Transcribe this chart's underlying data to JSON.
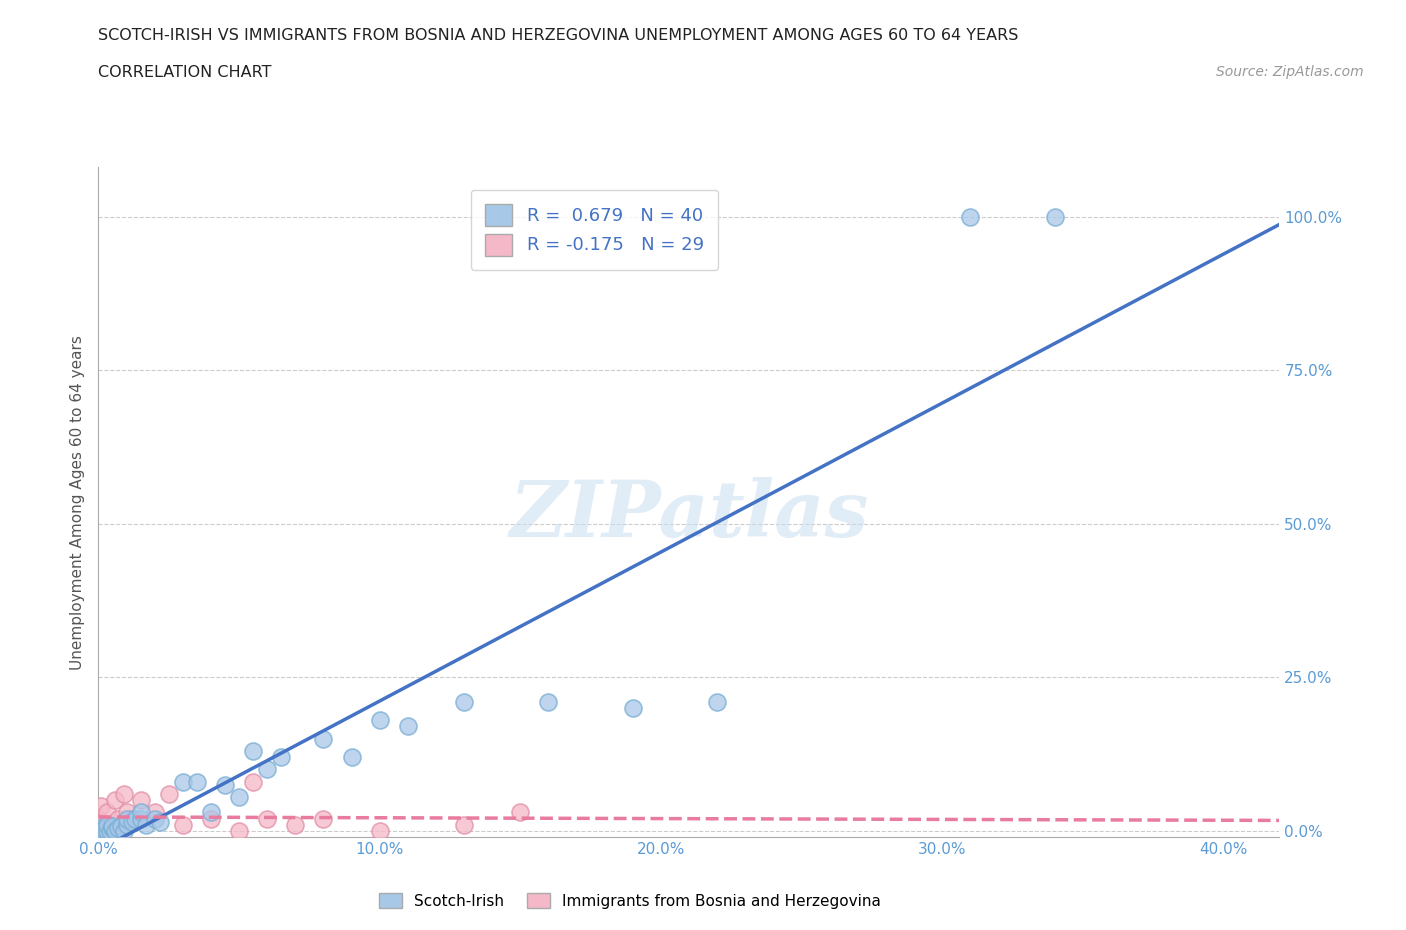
{
  "title_line1": "SCOTCH-IRISH VS IMMIGRANTS FROM BOSNIA AND HERZEGOVINA UNEMPLOYMENT AMONG AGES 60 TO 64 YEARS",
  "title_line2": "CORRELATION CHART",
  "source_text": "Source: ZipAtlas.com",
  "ylabel": "Unemployment Among Ages 60 to 64 years",
  "watermark": "ZIPatlas",
  "xlim": [
    0.0,
    0.42
  ],
  "ylim": [
    -0.01,
    1.08
  ],
  "xtick_vals": [
    0.0,
    0.1,
    0.2,
    0.3,
    0.4
  ],
  "ytick_vals": [
    0.0,
    0.25,
    0.5,
    0.75,
    1.0
  ],
  "ytick_labels": [
    "0.0%",
    "25.0%",
    "50.0%",
    "75.0%",
    "100.0%"
  ],
  "grid_color": "#cccccc",
  "scotch_irish_color": "#a8c8e8",
  "scotch_irish_edge": "#7aaed4",
  "bosnia_color": "#f5b8c8",
  "bosnia_edge": "#e090a8",
  "regression_si_color": "#4472c4",
  "regression_bo_color": "#e87b9e",
  "scotch_irish_R": 0.679,
  "scotch_irish_N": 40,
  "bosnia_R": -0.175,
  "bosnia_N": 29,
  "scotch_irish_x": [
    0.0,
    0.0,
    0.001,
    0.002,
    0.003,
    0.003,
    0.004,
    0.005,
    0.005,
    0.006,
    0.007,
    0.008,
    0.009,
    0.01,
    0.01,
    0.012,
    0.013,
    0.015,
    0.015,
    0.017,
    0.02,
    0.022,
    0.03,
    0.035,
    0.04,
    0.045,
    0.05,
    0.055,
    0.06,
    0.065,
    0.08,
    0.09,
    0.1,
    0.11,
    0.13,
    0.16,
    0.19,
    0.22,
    0.31,
    0.34
  ],
  "scotch_irish_y": [
    0.0,
    0.005,
    0.0,
    0.003,
    0.0,
    0.01,
    0.0,
    0.005,
    0.008,
    0.0,
    0.005,
    0.008,
    0.0,
    0.01,
    0.02,
    0.015,
    0.02,
    0.02,
    0.03,
    0.01,
    0.02,
    0.015,
    0.08,
    0.08,
    0.03,
    0.075,
    0.055,
    0.13,
    0.1,
    0.12,
    0.15,
    0.12,
    0.18,
    0.17,
    0.21,
    0.21,
    0.2,
    0.21,
    1.0,
    1.0
  ],
  "bosnia_x": [
    0.0,
    0.0,
    0.0,
    0.0,
    0.001,
    0.002,
    0.003,
    0.004,
    0.005,
    0.006,
    0.007,
    0.008,
    0.009,
    0.01,
    0.01,
    0.012,
    0.015,
    0.02,
    0.025,
    0.03,
    0.04,
    0.05,
    0.055,
    0.06,
    0.07,
    0.08,
    0.1,
    0.13,
    0.15
  ],
  "bosnia_y": [
    0.0,
    0.005,
    0.01,
    0.02,
    0.04,
    0.0,
    0.03,
    0.01,
    0.0,
    0.05,
    0.02,
    0.0,
    0.06,
    0.01,
    0.03,
    0.02,
    0.05,
    0.03,
    0.06,
    0.01,
    0.02,
    0.0,
    0.08,
    0.02,
    0.01,
    0.02,
    0.0,
    0.01,
    0.03
  ],
  "background_color": "#ffffff"
}
